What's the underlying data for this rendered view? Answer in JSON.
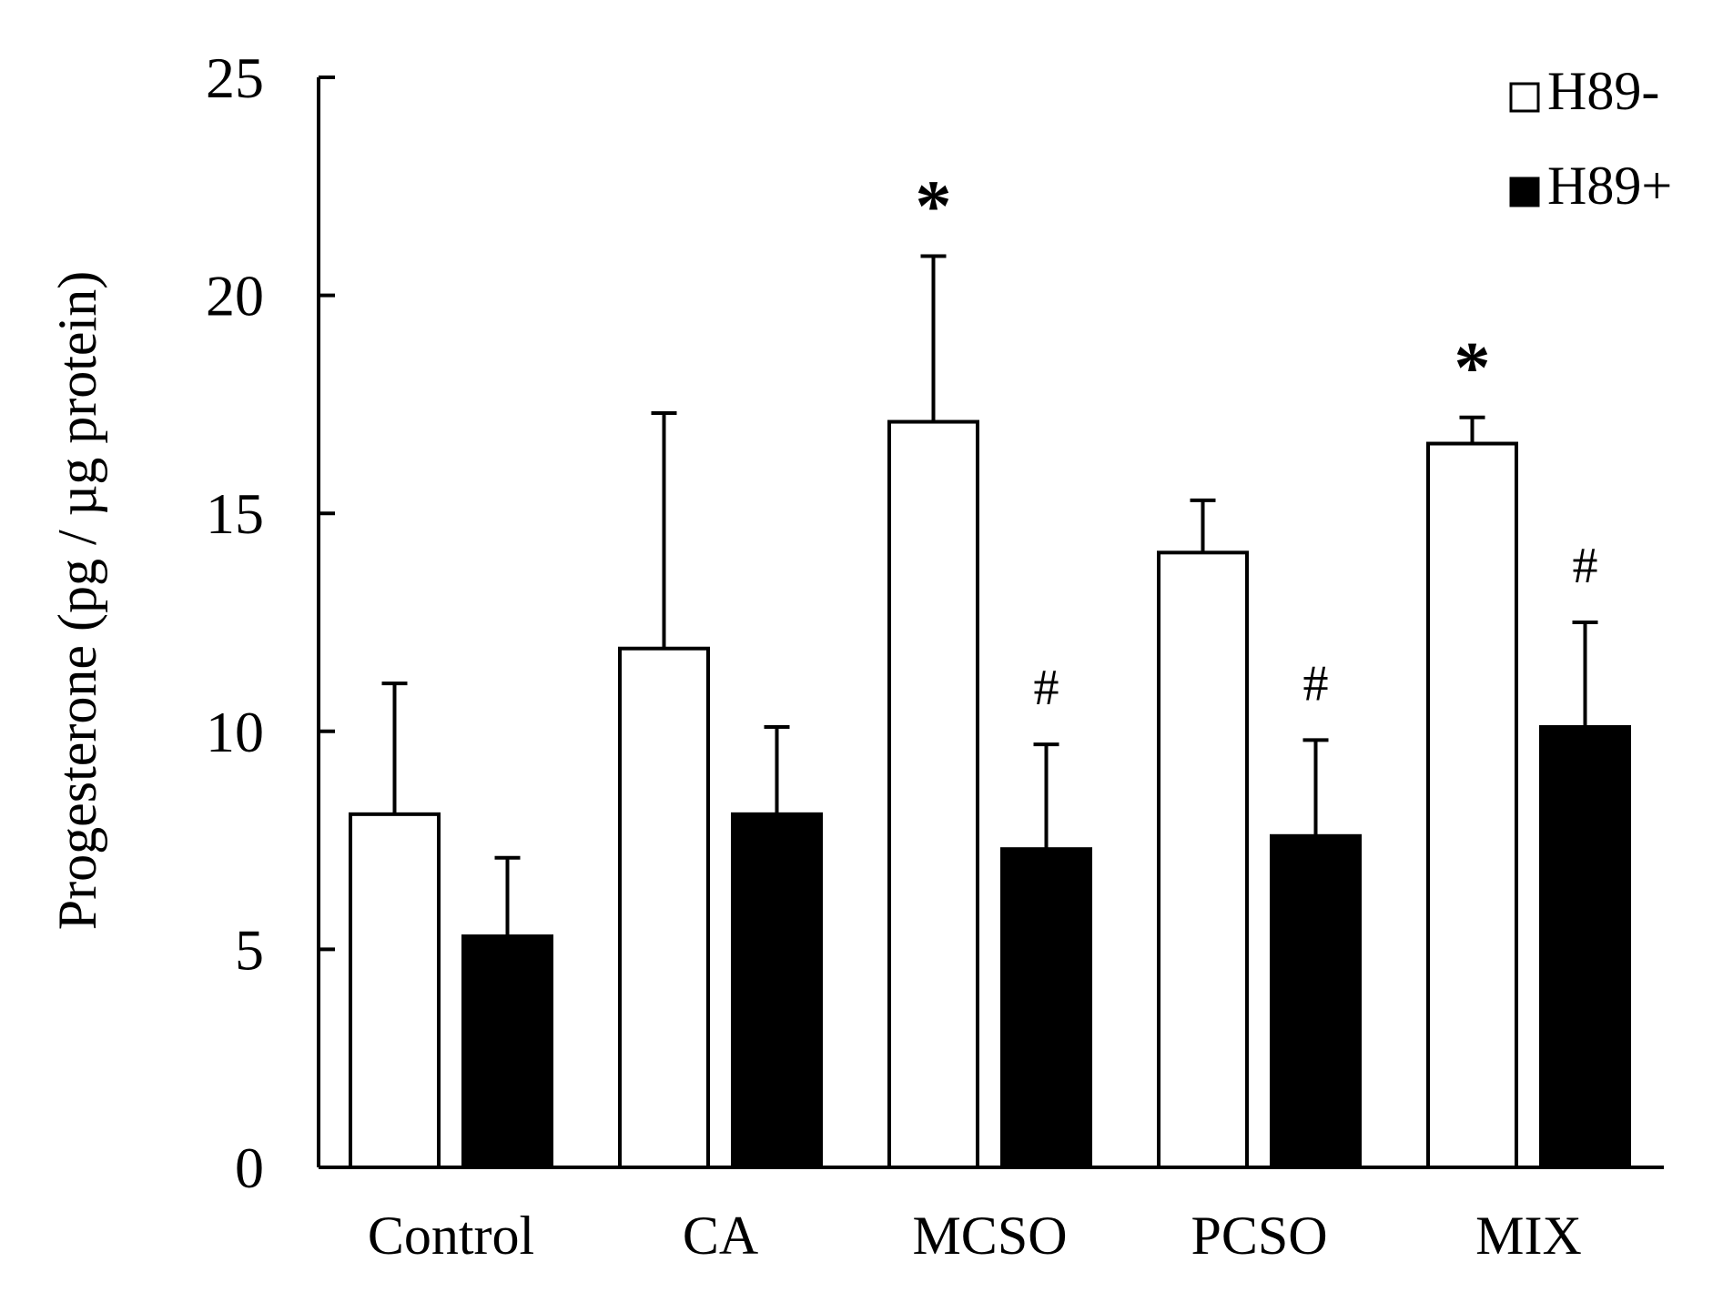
{
  "chart_data": {
    "type": "bar",
    "title": "",
    "xlabel": "",
    "ylabel": "Progesterone (pg / µg protein)",
    "ylim": [
      0,
      25
    ],
    "yticks": [
      0,
      5,
      10,
      15,
      20,
      25
    ],
    "categories": [
      "Control",
      "CA",
      "MCSO",
      "PCSO",
      "MIX"
    ],
    "series": [
      {
        "name": "H89-",
        "color": "#ffffff",
        "values": [
          8.1,
          11.9,
          17.1,
          14.1,
          16.6
        ],
        "errors": [
          3.0,
          5.4,
          3.8,
          1.2,
          0.6
        ],
        "markers": [
          "",
          "",
          "*",
          "",
          "*"
        ]
      },
      {
        "name": "H89+",
        "color": "#000000",
        "values": [
          5.3,
          8.1,
          7.3,
          7.6,
          10.1
        ],
        "errors": [
          1.8,
          2.0,
          2.4,
          2.2,
          2.4
        ],
        "markers": [
          "",
          "",
          "#",
          "#",
          "#"
        ]
      }
    ],
    "legend": {
      "position": "top-right"
    }
  }
}
